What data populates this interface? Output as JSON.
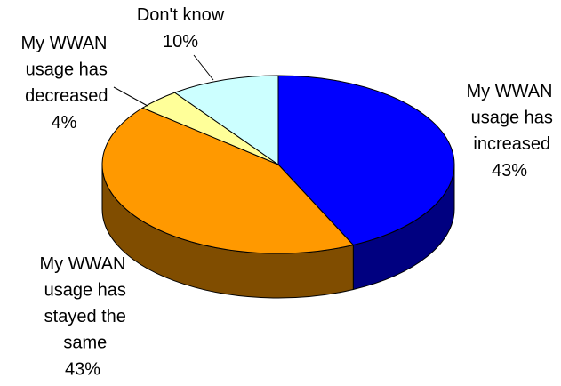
{
  "chart_data": {
    "type": "pie",
    "categories": [
      "My WWAN usage has increased",
      "My WWAN usage has stayed the same",
      "My WWAN usage has decreased",
      "Don't know"
    ],
    "values": [
      43,
      43,
      4,
      10
    ],
    "value_labels": [
      "43%",
      "43%",
      "4%",
      "10%"
    ],
    "colors": [
      "#0000ff",
      "#ff9900",
      "#ffff99",
      "#ccffff"
    ]
  }
}
